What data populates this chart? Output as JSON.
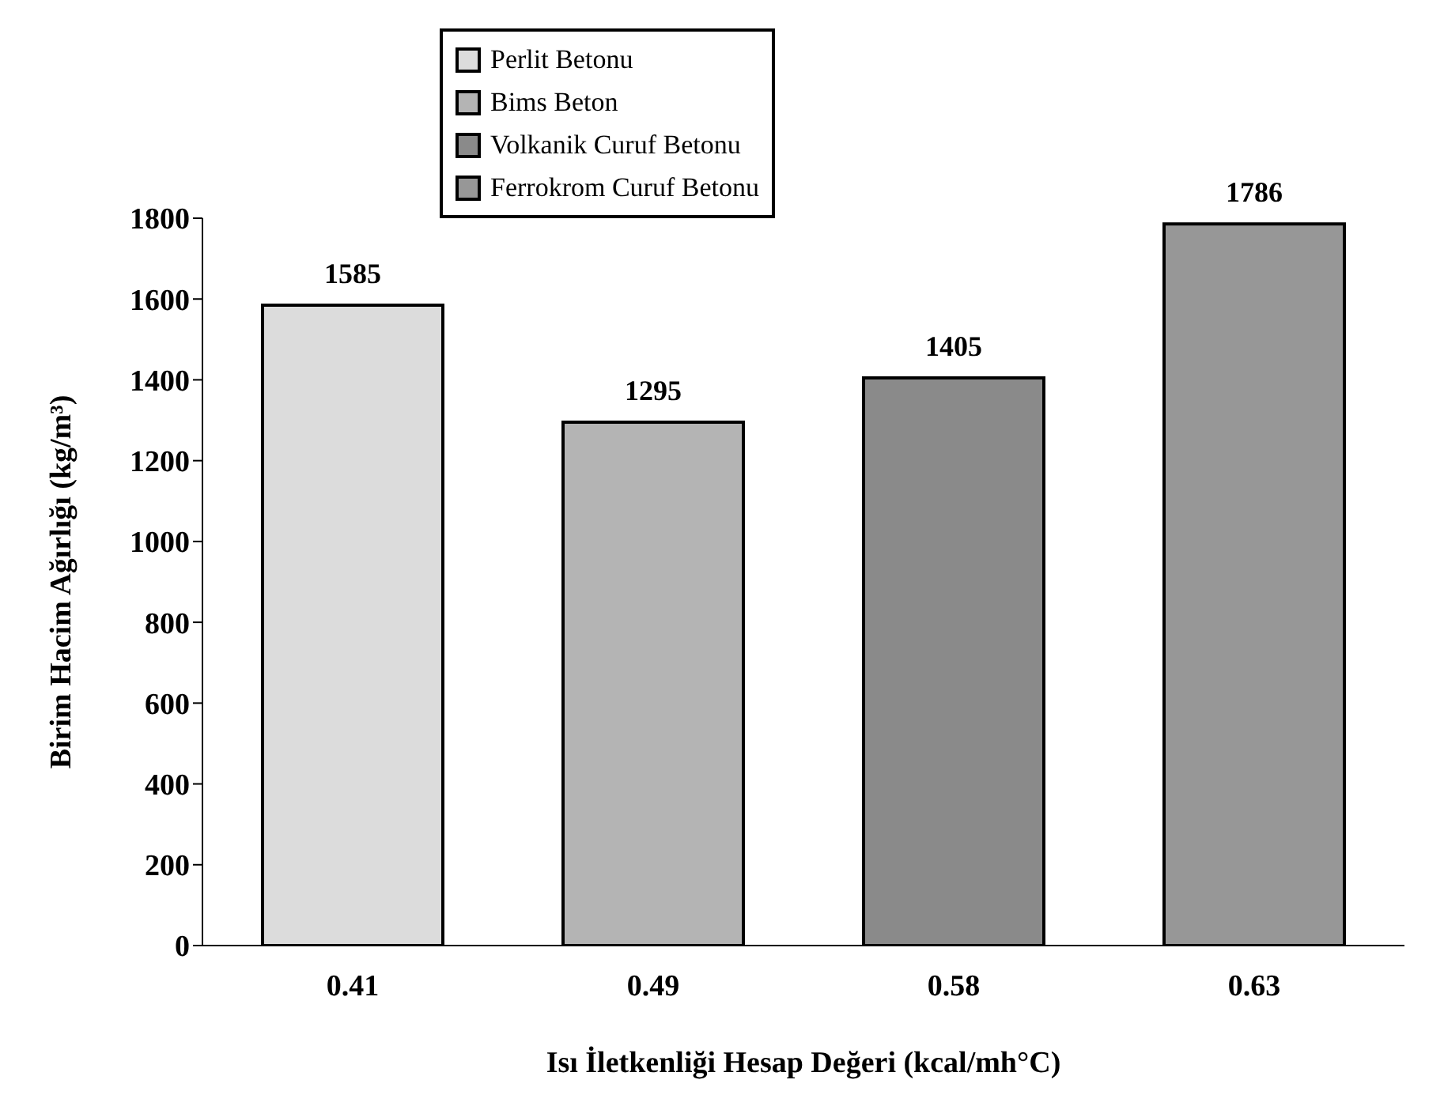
{
  "chart_data": {
    "type": "bar",
    "xlabel": "Isı İletkenliği Hesap Değeri (kcal/mh°C)",
    "ylabel": "Birim Hacim Ağırlığı (kg/m³)",
    "categories": [
      "0.41",
      "0.49",
      "0.58",
      "0.63"
    ],
    "series": [
      {
        "name": "Perlit Betonu",
        "color": "#dcdcdc",
        "values": [
          1585,
          null,
          null,
          null
        ]
      },
      {
        "name": "Bims Beton",
        "color": "#b4b4b4",
        "values": [
          null,
          1295,
          null,
          null
        ]
      },
      {
        "name": "Volkanik Curuf Betonu",
        "color": "#8a8a8a",
        "values": [
          null,
          null,
          1405,
          null
        ]
      },
      {
        "name": "Ferrokrom Curuf Betonu",
        "color": "#979797",
        "values": [
          null,
          null,
          null,
          1786
        ]
      }
    ],
    "ylim": [
      0,
      1800
    ],
    "yticks": [
      0,
      200,
      400,
      600,
      800,
      1000,
      1200,
      1400,
      1600,
      1800
    ],
    "grid": false,
    "legend": "top",
    "data_labels": true
  }
}
